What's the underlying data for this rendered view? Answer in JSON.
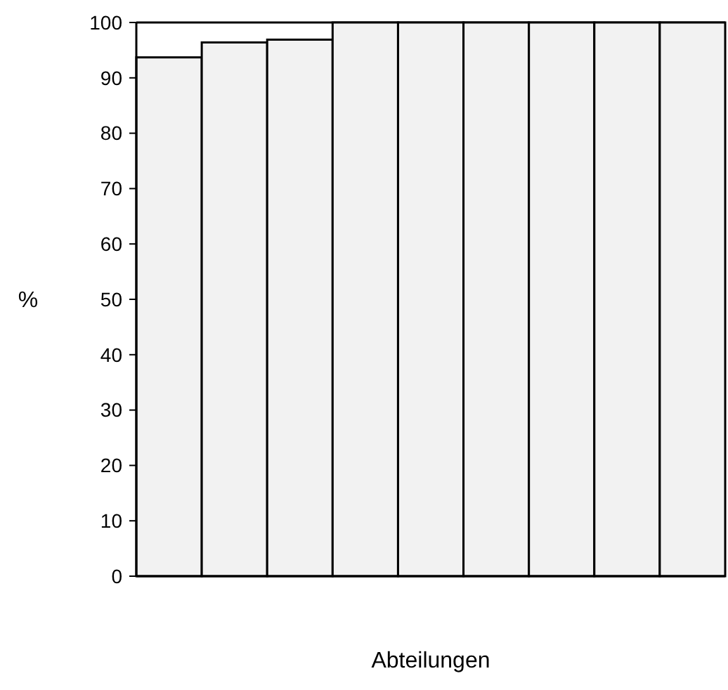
{
  "chart_data": {
    "type": "bar",
    "xlabel": "Abteilungen",
    "ylabel": "%",
    "categories": [
      null,
      null,
      null,
      null,
      null,
      null,
      null,
      null,
      null
    ],
    "values": [
      93.7,
      96.4,
      96.9,
      100,
      100,
      100,
      100,
      100,
      100
    ],
    "color": "#f2f2f2",
    "ylim": [
      0,
      100
    ],
    "yticks": [
      0,
      10,
      20,
      30,
      40,
      50,
      60,
      70,
      80,
      90,
      100
    ]
  }
}
